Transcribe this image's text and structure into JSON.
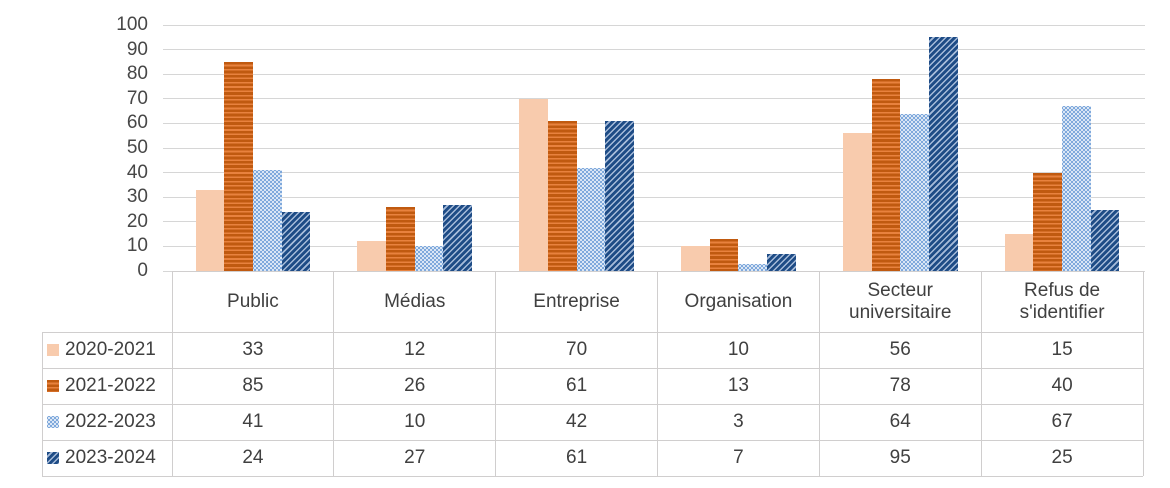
{
  "chart_data": {
    "type": "bar",
    "title": "",
    "xlabel": "",
    "ylabel": "",
    "ylim": [
      0,
      100
    ],
    "yticks": [
      0,
      10,
      20,
      30,
      40,
      50,
      60,
      70,
      80,
      90,
      100
    ],
    "grid": true,
    "legend_position": "table-left-keys",
    "categories": [
      "Public",
      "Médias",
      "Entreprise",
      "Organisation",
      "Secteur universitaire",
      "Refus de s'identifier"
    ],
    "series": [
      {
        "name": "2020-2021",
        "pattern": "solid-peach",
        "color": "#f8cbad",
        "values": [
          33,
          12,
          70,
          10,
          56,
          15
        ]
      },
      {
        "name": "2021-2022",
        "pattern": "orange-horizontal-stripes",
        "color": "#c05a10",
        "values": [
          85,
          26,
          61,
          13,
          78,
          40
        ]
      },
      {
        "name": "2022-2023",
        "pattern": "light-blue-dots",
        "color": "#7fa9dc",
        "values": [
          41,
          10,
          42,
          3,
          64,
          67
        ]
      },
      {
        "name": "2023-2024",
        "pattern": "navy-diagonal-stripes",
        "color": "#1e4c86",
        "values": [
          24,
          27,
          61,
          7,
          95,
          25
        ]
      }
    ]
  },
  "style": {
    "gridline_color": "#d6d6d6",
    "table_border_color": "#d0cece",
    "text_color": "#404040",
    "background": "#ffffff"
  }
}
